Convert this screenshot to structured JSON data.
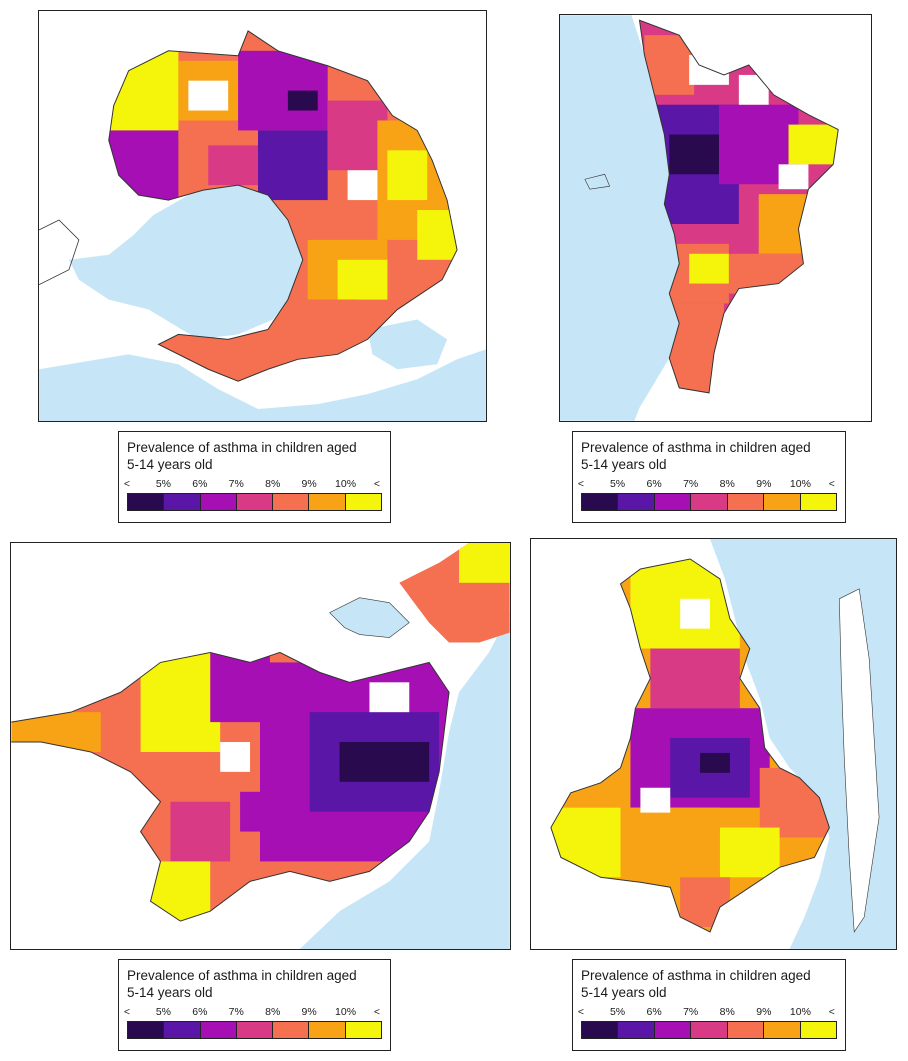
{
  "legend": {
    "title_line1": "Prevalence of asthma in children aged",
    "title_line2": "5-14 years old",
    "ticks": [
      "<",
      "5%",
      "6%",
      "7%",
      "8%",
      "9%",
      "10%",
      "<"
    ],
    "colors": [
      "#2a0a4f",
      "#5a16a6",
      "#a60fb3",
      "#d83a86",
      "#f47050",
      "#f8a316",
      "#f4f50a"
    ]
  },
  "colors": {
    "water": "#c6e6f8",
    "no_data": "#ffffff",
    "border": "#333333"
  },
  "maps": [
    {
      "id": "melbourne"
    },
    {
      "id": "perth"
    },
    {
      "id": "sydney"
    },
    {
      "id": "brisbane"
    }
  ]
}
